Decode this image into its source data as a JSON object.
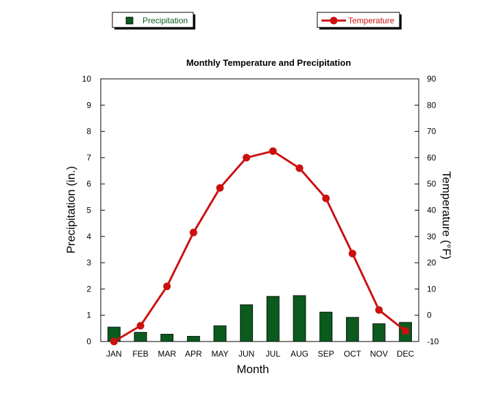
{
  "chart_data": {
    "type": "bar+line",
    "title": "Monthly Temperature and Precipitation",
    "xlabel": "Month",
    "ylabel_left": "Precipitation (in.)",
    "ylabel_right": "Temperature (°F)",
    "categories": [
      "JAN",
      "FEB",
      "MAR",
      "APR",
      "MAY",
      "JUN",
      "JUL",
      "AUG",
      "SEP",
      "OCT",
      "NOV",
      "DEC"
    ],
    "y_left_range": [
      0,
      10
    ],
    "y_left_ticks": [
      "0",
      "1",
      "2",
      "3",
      "4",
      "5",
      "6",
      "7",
      "8",
      "9",
      "10"
    ],
    "y_right_range": [
      -10,
      90
    ],
    "y_right_ticks": [
      "-10",
      "0",
      "10",
      "20",
      "30",
      "40",
      "50",
      "60",
      "70",
      "80",
      "90"
    ],
    "series": [
      {
        "name": "Precipitation",
        "type": "bar",
        "axis": "left",
        "color": "#0b5a1e",
        "values": [
          0.55,
          0.35,
          0.28,
          0.2,
          0.6,
          1.4,
          1.72,
          1.75,
          1.12,
          0.92,
          0.68,
          0.73
        ]
      },
      {
        "name": "Temperature",
        "type": "line",
        "axis": "right",
        "color": "#cc1010",
        "values": [
          -10,
          -4,
          11,
          31.5,
          48.5,
          60,
          62.5,
          56,
          44.5,
          23.5,
          2,
          -6
        ]
      }
    ],
    "legend": {
      "placement": "top"
    },
    "grid": false
  }
}
